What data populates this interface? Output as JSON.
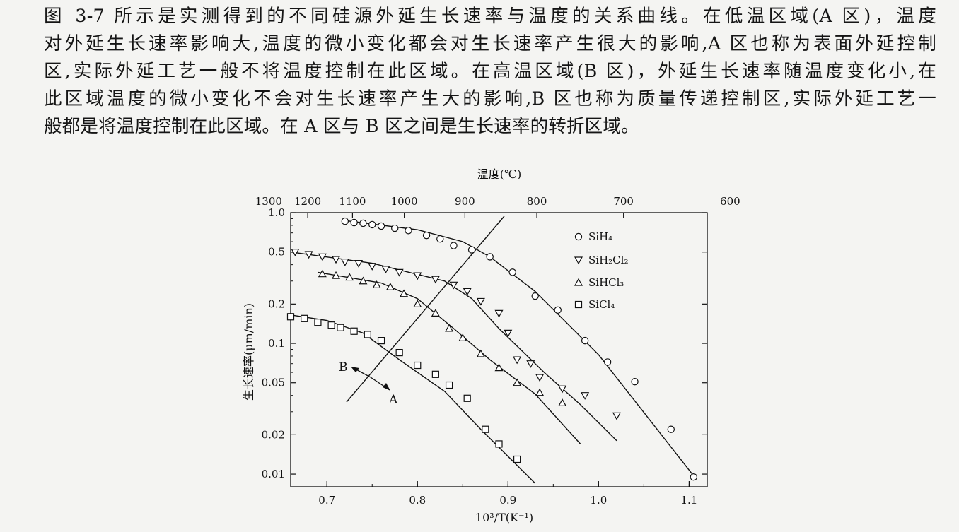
{
  "paragraph": {
    "lines": [
      "图 3-7 所示是实测得到的不同硅源外延生长速率与温度的关系曲线。在低温区域(A 区)，温度",
      "对外延生长速率影响大,温度的微小变化都会对生长速率产生很大的影响,A 区也称为表面外延控制",
      "区,实际外延工艺一般不将温度控制在此区域。在高温区域(B 区)，外延生长速率随温度变化小,在",
      "此区域温度的微小变化不会对生长速率产生大的影响,B 区也称为质量传递控制区,实际外延工艺一",
      "般都是将温度控制在此区域。在 A 区与 B 区之间是生长速率的转折区域。"
    ]
  },
  "chart_data": {
    "type": "scatter",
    "title": "",
    "xlabel": "10³/T(K⁻¹)",
    "ylabel": "生长速率(μm/min)",
    "top_xlabel": "温度(℃)",
    "xlim": [
      0.66,
      1.12
    ],
    "ylim": [
      0.008,
      1.0
    ],
    "y_scale": "log",
    "x_ticks": [
      "0.7",
      "0.8",
      "0.9",
      "1.0",
      "1.1"
    ],
    "y_ticks": [
      "1.0",
      "0.5",
      "0.2",
      "0.1",
      "0.05",
      "0.02",
      "0.01"
    ],
    "top_ticks": [
      "1300",
      "1200",
      "1100",
      "1000",
      "900",
      "800",
      "700",
      "600"
    ],
    "legend_position": "top-right",
    "region_labels": [
      "B",
      "A"
    ],
    "series": [
      {
        "name": "SiH₄",
        "marker": "circle",
        "points": [
          [
            0.72,
            0.86
          ],
          [
            0.73,
            0.84
          ],
          [
            0.74,
            0.83
          ],
          [
            0.75,
            0.81
          ],
          [
            0.76,
            0.79
          ],
          [
            0.775,
            0.76
          ],
          [
            0.79,
            0.73
          ],
          [
            0.81,
            0.67
          ],
          [
            0.825,
            0.63
          ],
          [
            0.84,
            0.56
          ],
          [
            0.86,
            0.52
          ],
          [
            0.88,
            0.46
          ],
          [
            0.905,
            0.35
          ],
          [
            0.93,
            0.23
          ],
          [
            0.955,
            0.18
          ],
          [
            0.985,
            0.105
          ],
          [
            1.01,
            0.072
          ],
          [
            1.04,
            0.051
          ],
          [
            1.08,
            0.022
          ],
          [
            1.105,
            0.0095
          ]
        ],
        "line": [
          [
            0.72,
            0.87
          ],
          [
            0.8,
            0.74
          ],
          [
            0.85,
            0.6
          ],
          [
            0.88,
            0.46
          ],
          [
            0.9,
            0.36
          ],
          [
            0.93,
            0.25
          ],
          [
            1.0,
            0.082
          ],
          [
            1.106,
            0.0095
          ]
        ]
      },
      {
        "name": "SiH₂Cl₂",
        "marker": "triangle-down",
        "points": [
          [
            0.665,
            0.5
          ],
          [
            0.68,
            0.48
          ],
          [
            0.695,
            0.46
          ],
          [
            0.71,
            0.44
          ],
          [
            0.72,
            0.42
          ],
          [
            0.735,
            0.41
          ],
          [
            0.75,
            0.39
          ],
          [
            0.765,
            0.37
          ],
          [
            0.78,
            0.35
          ],
          [
            0.8,
            0.33
          ],
          [
            0.82,
            0.31
          ],
          [
            0.84,
            0.28
          ],
          [
            0.855,
            0.25
          ],
          [
            0.87,
            0.21
          ],
          [
            0.89,
            0.17
          ],
          [
            0.9,
            0.12
          ],
          [
            0.91,
            0.075
          ],
          [
            0.925,
            0.07
          ],
          [
            0.935,
            0.055
          ],
          [
            0.96,
            0.045
          ],
          [
            0.985,
            0.04
          ],
          [
            1.02,
            0.028
          ]
        ],
        "line": [
          [
            0.66,
            0.5
          ],
          [
            0.75,
            0.41
          ],
          [
            0.83,
            0.3
          ],
          [
            0.86,
            0.22
          ],
          [
            0.89,
            0.13
          ],
          [
            0.94,
            0.06
          ],
          [
            0.98,
            0.034
          ],
          [
            1.02,
            0.018
          ]
        ]
      },
      {
        "name": "SiHCl₃",
        "marker": "triangle-up",
        "points": [
          [
            0.695,
            0.34
          ],
          [
            0.71,
            0.33
          ],
          [
            0.725,
            0.32
          ],
          [
            0.74,
            0.3
          ],
          [
            0.755,
            0.28
          ],
          [
            0.77,
            0.27
          ],
          [
            0.785,
            0.24
          ],
          [
            0.8,
            0.2
          ],
          [
            0.82,
            0.17
          ],
          [
            0.835,
            0.13
          ],
          [
            0.85,
            0.11
          ],
          [
            0.87,
            0.083
          ],
          [
            0.89,
            0.065
          ],
          [
            0.91,
            0.05
          ],
          [
            0.935,
            0.042
          ],
          [
            0.96,
            0.035
          ]
        ],
        "line": [
          [
            0.69,
            0.35
          ],
          [
            0.76,
            0.29
          ],
          [
            0.8,
            0.22
          ],
          [
            0.84,
            0.13
          ],
          [
            0.88,
            0.075
          ],
          [
            0.93,
            0.041
          ],
          [
            0.98,
            0.017
          ]
        ]
      },
      {
        "name": "SiCl₄",
        "marker": "square",
        "points": [
          [
            0.66,
            0.16
          ],
          [
            0.675,
            0.155
          ],
          [
            0.69,
            0.145
          ],
          [
            0.705,
            0.138
          ],
          [
            0.715,
            0.132
          ],
          [
            0.73,
            0.124
          ],
          [
            0.745,
            0.117
          ],
          [
            0.76,
            0.105
          ],
          [
            0.78,
            0.085
          ],
          [
            0.8,
            0.068
          ],
          [
            0.82,
            0.058
          ],
          [
            0.835,
            0.048
          ],
          [
            0.855,
            0.038
          ],
          [
            0.875,
            0.022
          ],
          [
            0.89,
            0.017
          ],
          [
            0.91,
            0.013
          ]
        ],
        "line": [
          [
            0.66,
            0.165
          ],
          [
            0.7,
            0.15
          ],
          [
            0.74,
            0.12
          ],
          [
            0.78,
            0.075
          ],
          [
            0.83,
            0.043
          ],
          [
            0.87,
            0.022
          ],
          [
            0.93,
            0.0085
          ]
        ]
      }
    ]
  }
}
